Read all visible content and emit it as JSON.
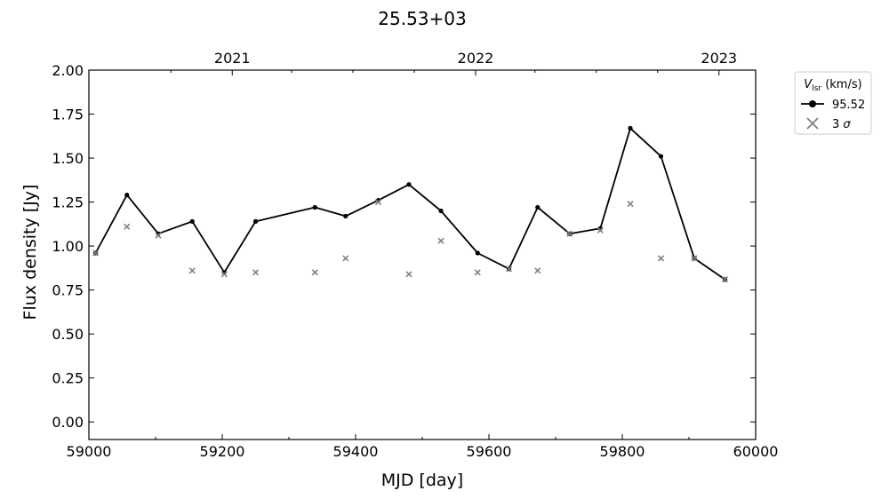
{
  "chart_data": {
    "type": "line",
    "title": "25.53+03",
    "xlabel": "MJD [day]",
    "ylabel": "Flux density [Jy]",
    "xlim": [
      59000,
      60000
    ],
    "ylim": [
      -0.1,
      2.0
    ],
    "x_ticks": [
      59000,
      59200,
      59400,
      59600,
      59800,
      60000
    ],
    "x_tick_labels": [
      "59000",
      "59200",
      "59400",
      "59600",
      "59800",
      "60000"
    ],
    "y_ticks": [
      0.0,
      0.25,
      0.5,
      0.75,
      1.0,
      1.25,
      1.5,
      1.75,
      2.0
    ],
    "y_tick_labels": [
      "0.00",
      "0.25",
      "0.50",
      "0.75",
      "1.00",
      "1.25",
      "1.50",
      "1.75",
      "2.00"
    ],
    "top_axis": {
      "ticks": [
        59215,
        59580,
        59945
      ],
      "labels": [
        "2021",
        "2022",
        "2023"
      ]
    },
    "grid": false,
    "legend": {
      "placement": "outside top-right",
      "title_main": "V",
      "title_sub": "lsr",
      "title_rest": " (km/s)",
      "entries": [
        {
          "label": "95.52",
          "marker": "line-dot",
          "color": "#000000"
        },
        {
          "label_main": "3 ",
          "label_sigma": "σ",
          "marker": "x",
          "color": "#808080"
        }
      ]
    },
    "series": [
      {
        "name": "95.52",
        "color": "#000000",
        "x": [
          59010,
          59057,
          59104,
          59155,
          59203,
          59250,
          59339,
          59385,
          59434,
          59480,
          59528,
          59583,
          59630,
          59673,
          59721,
          59767,
          59812,
          59858,
          59908,
          59954
        ],
        "y": [
          0.96,
          1.29,
          1.07,
          1.14,
          0.85,
          1.14,
          1.22,
          1.17,
          1.26,
          1.35,
          1.2,
          0.96,
          0.87,
          1.22,
          1.07,
          1.1,
          1.67,
          1.51,
          0.93,
          0.81
        ]
      },
      {
        "name": "3 σ",
        "color": "#808080",
        "x": [
          59010,
          59057,
          59104,
          59155,
          59203,
          59250,
          59339,
          59385,
          59434,
          59480,
          59528,
          59583,
          59630,
          59673,
          59721,
          59767,
          59812,
          59858,
          59908,
          59954
        ],
        "y": [
          0.96,
          1.11,
          1.06,
          0.86,
          0.84,
          0.85,
          0.85,
          0.93,
          1.25,
          0.84,
          1.03,
          0.85,
          0.87,
          0.86,
          1.07,
          1.09,
          1.24,
          0.93,
          0.93,
          0.81
        ]
      }
    ]
  }
}
